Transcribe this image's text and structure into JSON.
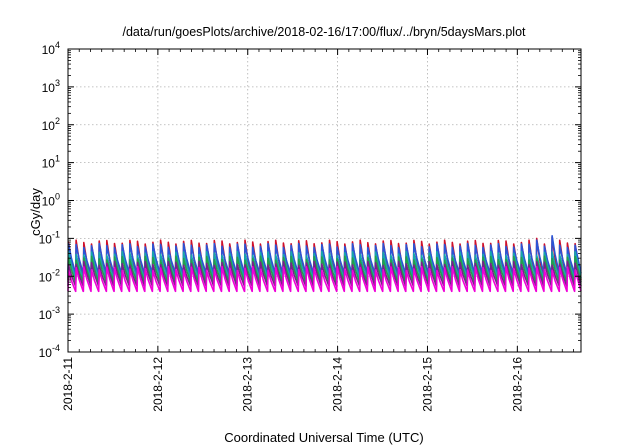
{
  "chart_data": {
    "type": "line",
    "title": "/data/run/goesPlots/archive/2018-02-16/17:00/flux/../bryn/5daysMars.plot",
    "xlabel": "Coordinated Universal Time (UTC)",
    "ylabel": "cGy/day",
    "yscale": "log",
    "ylim": [
      0.0001,
      10000
    ],
    "y_ticks": [
      {
        "value": 0.0001,
        "base": "10",
        "exp": "-4"
      },
      {
        "value": 0.001,
        "base": "10",
        "exp": "-3"
      },
      {
        "value": 0.01,
        "base": "10",
        "exp": "-2"
      },
      {
        "value": 0.1,
        "base": "10",
        "exp": "-1"
      },
      {
        "value": 1,
        "base": "10",
        "exp": "0"
      },
      {
        "value": 10,
        "base": "10",
        "exp": "1"
      },
      {
        "value": 100,
        "base": "10",
        "exp": "2"
      },
      {
        "value": 1000,
        "base": "10",
        "exp": "3"
      },
      {
        "value": 10000,
        "base": "10",
        "exp": "4"
      }
    ],
    "xlim": [
      "2018-02-11 00:00",
      "2018-02-16 17:00"
    ],
    "x_ticks": [
      "2018-2-11",
      "2018-2-12",
      "2018-2-13",
      "2018-2-14",
      "2018-2-15",
      "2018-2-16"
    ],
    "grid": true,
    "legend": "none",
    "pattern": {
      "period_hours": 2.05,
      "series": [
        {
          "color": "#d0102a",
          "peak": 0.08,
          "trough": 0.008
        },
        {
          "color": "#2a55d6",
          "peak": 0.065,
          "trough": 0.012
        },
        {
          "color": "#16a6ad",
          "peak": 0.04,
          "trough": 0.009
        },
        {
          "color": "#22a04a",
          "peak": 0.03,
          "trough": 0.007
        },
        {
          "color": "#7a1f8c",
          "peak": 0.022,
          "trough": 0.0055
        },
        {
          "color": "#f000d8",
          "peak": 0.016,
          "trough": 0.004
        }
      ],
      "spikes": [
        {
          "time": "2018-02-16 06:00",
          "peak": 0.1
        },
        {
          "time": "2018-02-16 09:00",
          "peak": 0.105
        }
      ]
    }
  }
}
